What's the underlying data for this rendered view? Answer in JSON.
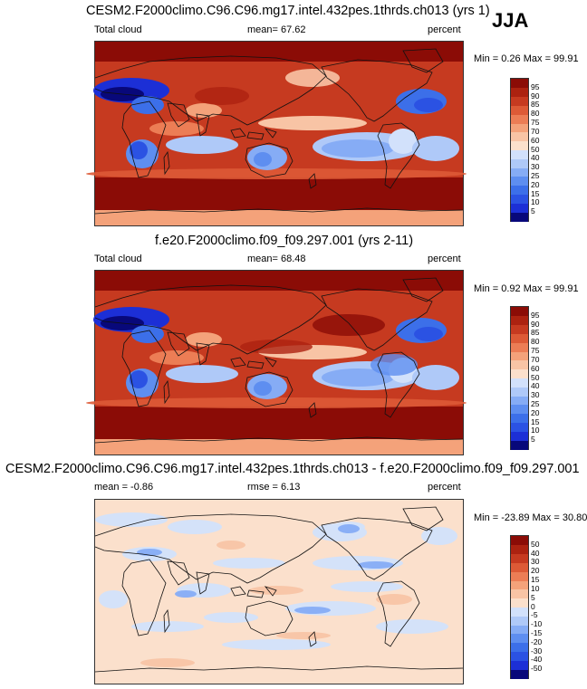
{
  "season": "JJA",
  "panels": [
    {
      "title": "CESM2.F2000climo.C96.C96.mg17.intel.432pes.1thrds.ch013 (yrs 1)",
      "left_label": "Total cloud",
      "center_label": "mean=  67.62",
      "right_label": "percent",
      "minmax": "Min =   0.26 Max =  99.91",
      "colorbar": {
        "colors": [
          "#08087a",
          "#1c2fd6",
          "#2b52e3",
          "#3c6fe9",
          "#5e8ef0",
          "#86acf5",
          "#afc9f8",
          "#d2e1fb",
          "#fbe0cc",
          "#f8c4a5",
          "#f4a27a",
          "#ec7d55",
          "#dd5a36",
          "#c63a20",
          "#ac2210",
          "#8b0c06"
        ],
        "labels": [
          "5",
          "10",
          "15",
          "20",
          "25",
          "30",
          "40",
          "50",
          "60",
          "70",
          "75",
          "80",
          "85",
          "90",
          "95"
        ]
      },
      "field": "abs"
    },
    {
      "title": "f.e20.F2000climo.f09_f09.297.001 (yrs 2-11)",
      "left_label": "Total cloud",
      "center_label": "mean=  68.48",
      "right_label": "percent",
      "minmax": "Min =   0.92 Max =  99.91",
      "colorbar": {
        "colors": [
          "#08087a",
          "#1c2fd6",
          "#2b52e3",
          "#3c6fe9",
          "#5e8ef0",
          "#86acf5",
          "#afc9f8",
          "#d2e1fb",
          "#fbe0cc",
          "#f8c4a5",
          "#f4a27a",
          "#ec7d55",
          "#dd5a36",
          "#c63a20",
          "#ac2210",
          "#8b0c06"
        ],
        "labels": [
          "5",
          "10",
          "15",
          "20",
          "25",
          "30",
          "40",
          "50",
          "60",
          "70",
          "75",
          "80",
          "85",
          "90",
          "95"
        ]
      },
      "field": "abs"
    },
    {
      "title": "CESM2.F2000climo.C96.C96.mg17.intel.432pes.1thrds.ch013 - f.e20.F2000climo.f09_f09.297.001",
      "left_label": "mean =  -0.86",
      "center_label": "rmse =   6.13",
      "right_label": "percent",
      "minmax": "Min = -23.89 Max =  30.80",
      "colorbar": {
        "colors": [
          "#08087a",
          "#1c2fd6",
          "#2b52e3",
          "#3c6fe9",
          "#5e8ef0",
          "#86acf5",
          "#afc9f8",
          "#d2e1fb",
          "#fbe0cc",
          "#f8c4a5",
          "#f4a27a",
          "#ec7d55",
          "#dd5a36",
          "#c63a20",
          "#ac2210",
          "#8b0c06"
        ],
        "labels": [
          "-50",
          "-40",
          "-30",
          "-20",
          "-15",
          "-10",
          "-5",
          "0",
          "5",
          "10",
          "15",
          "20",
          "30",
          "40",
          "50"
        ]
      },
      "field": "diff"
    }
  ]
}
